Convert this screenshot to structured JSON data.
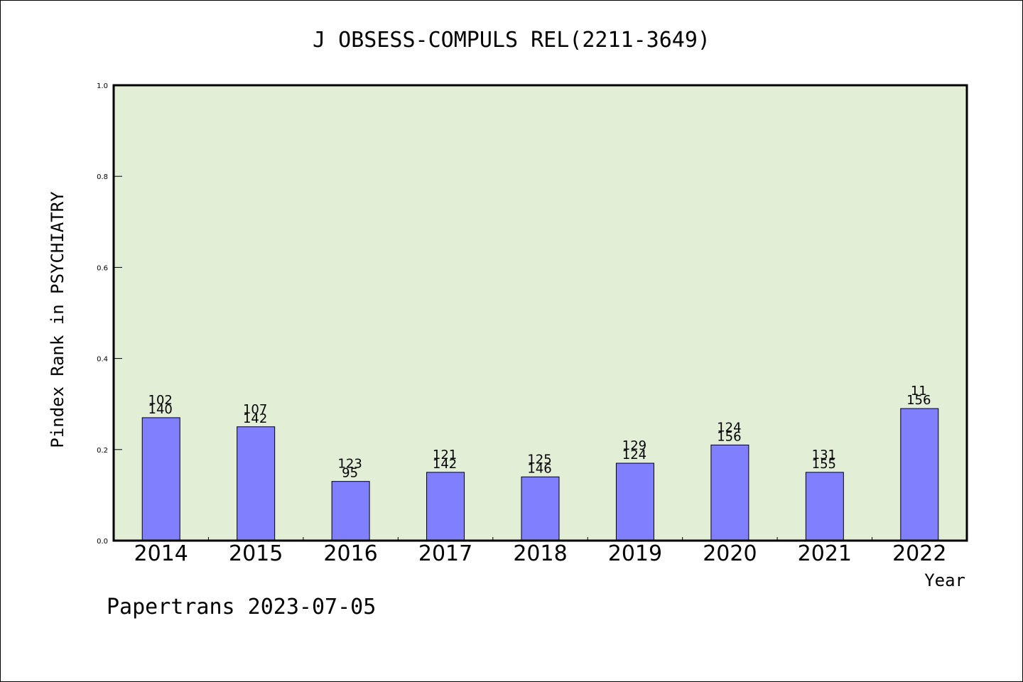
{
  "chart_data": {
    "type": "bar",
    "title": "J OBSESS-COMPULS REL(2211-3649)",
    "xlabel": "Year",
    "ylabel": "Pindex Rank in PSYCHIATRY",
    "ylim": [
      0,
      1.0
    ],
    "yticks": [
      "0.0",
      "0.2",
      "0.4",
      "0.6",
      "0.8",
      "1.0"
    ],
    "categories": [
      "2014",
      "2015",
      "2016",
      "2017",
      "2018",
      "2019",
      "2020",
      "2021",
      "2022"
    ],
    "values": [
      0.27,
      0.25,
      0.13,
      0.15,
      0.14,
      0.17,
      0.21,
      0.15,
      0.29
    ],
    "labels_top": [
      "102",
      "107",
      "123",
      "121",
      "125",
      "129",
      "124",
      "131",
      "11"
    ],
    "labels_bottom": [
      "140",
      "142",
      "95",
      "142",
      "146",
      "124",
      "156",
      "155",
      "156"
    ],
    "bar_color": "#8080ff",
    "plot_background": "#e2efd6",
    "grid": false,
    "legend": "none"
  },
  "footer": "Papertrans 2023-07-05"
}
